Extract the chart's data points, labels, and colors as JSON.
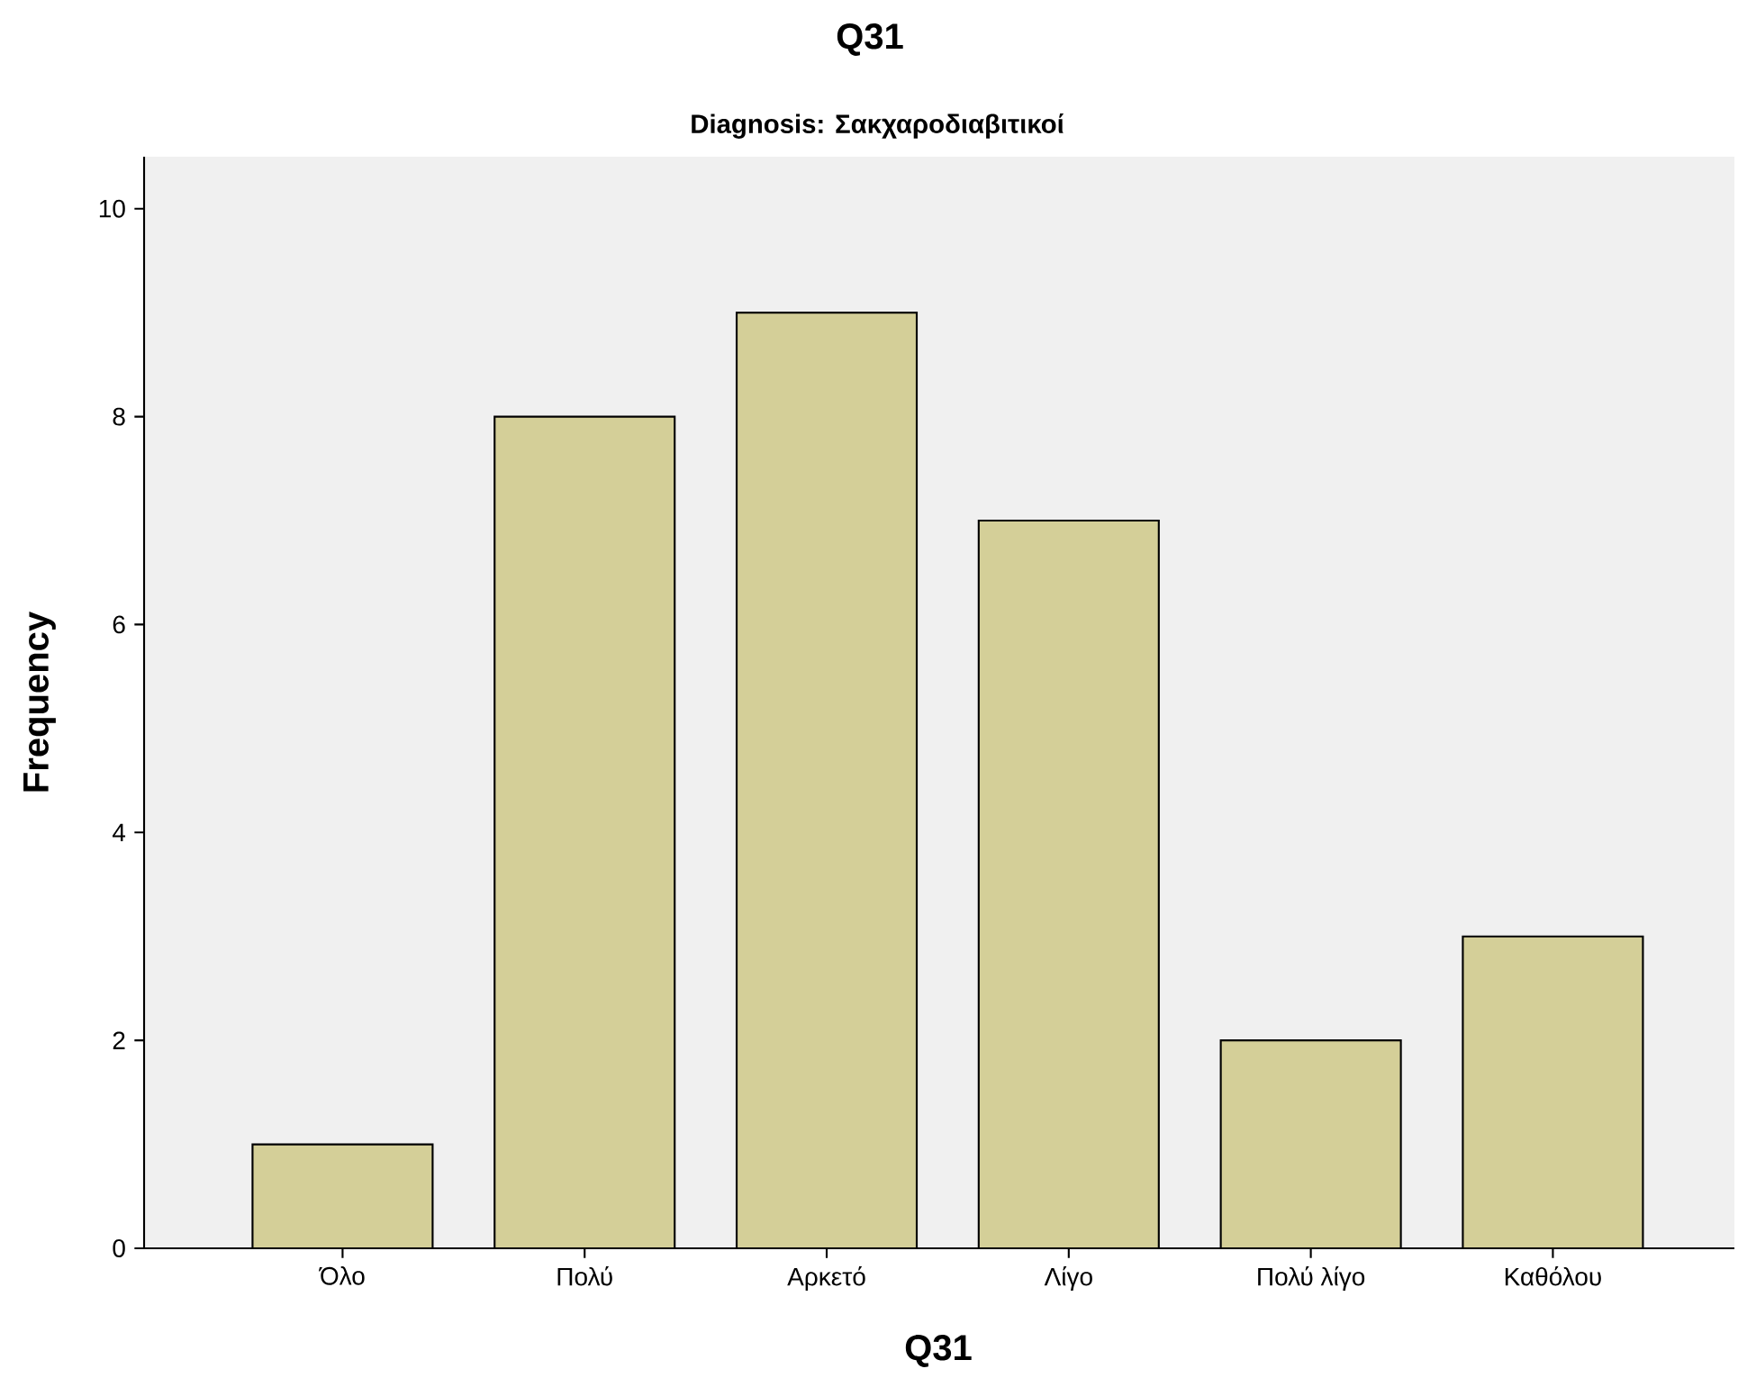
{
  "chart_data": {
    "type": "bar",
    "title": "Q31",
    "subtitle": "Diagnosis: Σακχαροδιαβιτικοί",
    "xlabel": "Q31",
    "ylabel": "Frequency",
    "categories": [
      "Όλο",
      "Πολύ",
      "Αρκετό",
      "Λίγο",
      "Πολύ λίγο",
      "Καθόλου"
    ],
    "values": [
      1,
      8,
      9,
      7,
      2,
      3
    ],
    "color": "#d4cf98",
    "ylim": [
      0,
      10.5
    ],
    "yticks": [
      0,
      2,
      4,
      6,
      8,
      10
    ],
    "grid": false
  }
}
